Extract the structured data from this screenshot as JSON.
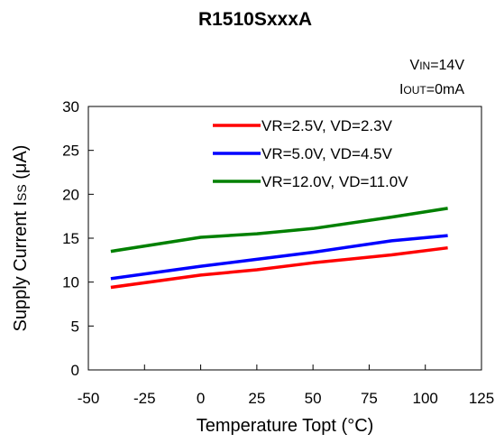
{
  "chart_data": {
    "type": "line",
    "title": "R1510SxxxA",
    "conditions": {
      "vin": {
        "main": "V",
        "sub": "IN",
        "value": "=14V"
      },
      "iout": {
        "main": "I",
        "sub": "OUT",
        "value": "=0mA"
      }
    },
    "xlabel": "Temperature Topt (°C)",
    "ylabel": {
      "main": "Supply Current I",
      "sub": "SS",
      "unit": " (μA)"
    },
    "xlim": [
      -50,
      125
    ],
    "ylim": [
      0,
      30
    ],
    "xticks": [
      -50,
      -25,
      0,
      25,
      50,
      75,
      100,
      125
    ],
    "yticks": [
      0,
      5,
      10,
      15,
      20,
      25,
      30
    ],
    "grid": false,
    "legend_position": "top-right",
    "series": [
      {
        "name": "VR=2.5V, VD=2.3V",
        "color": "#ff0000",
        "x": [
          -40,
          0,
          25,
          50,
          85,
          110
        ],
        "y": [
          9.4,
          10.8,
          11.4,
          12.2,
          13.1,
          13.9
        ]
      },
      {
        "name": "VR=5.0V, VD=4.5V",
        "color": "#0000ff",
        "x": [
          -40,
          0,
          25,
          50,
          85,
          110
        ],
        "y": [
          10.4,
          11.8,
          12.6,
          13.4,
          14.7,
          15.3
        ]
      },
      {
        "name": "VR=12.0V, VD=11.0V",
        "color": "#008000",
        "x": [
          -40,
          0,
          25,
          50,
          85,
          110
        ],
        "y": [
          13.5,
          15.1,
          15.5,
          16.1,
          17.4,
          18.4
        ]
      }
    ]
  }
}
